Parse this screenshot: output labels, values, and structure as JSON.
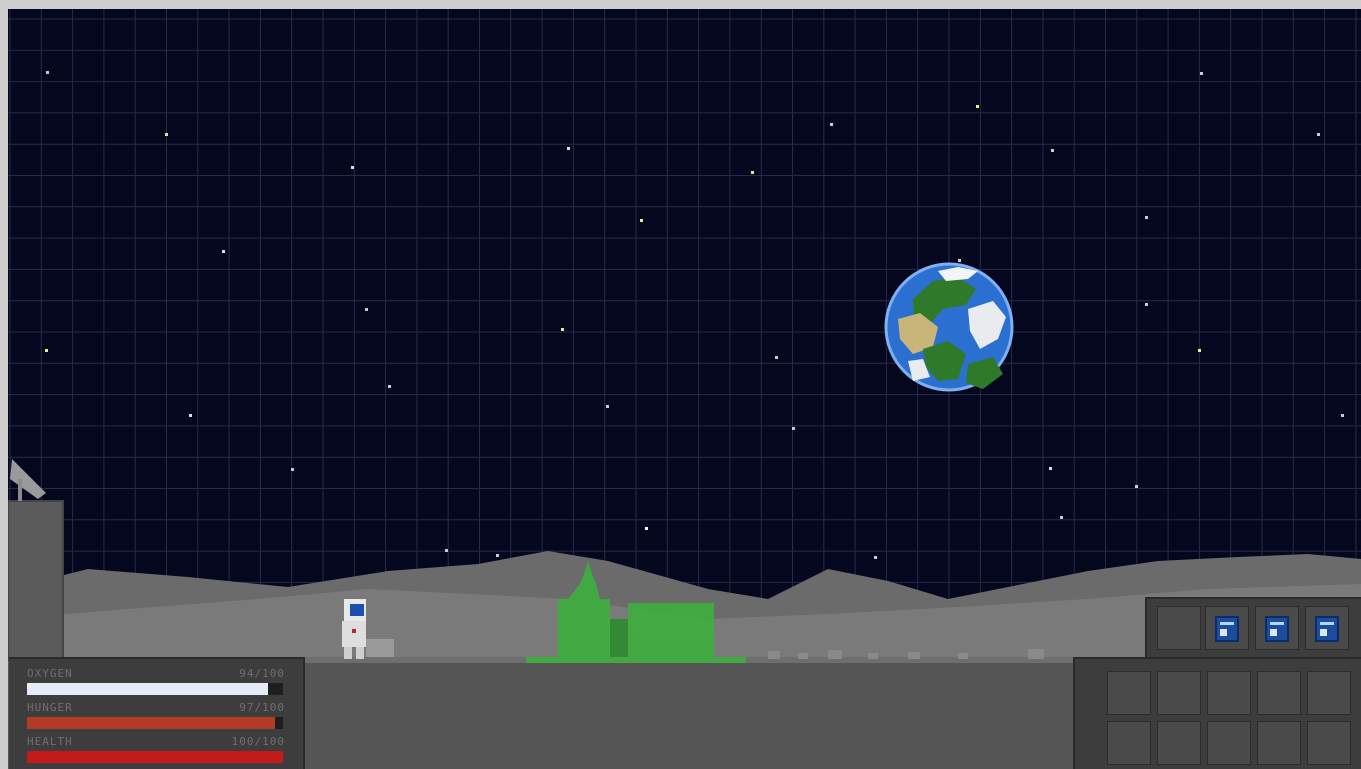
{
  "hud": {
    "stats": [
      {
        "label": "OXYGEN",
        "value_text": "94/100",
        "fraction": 0.94,
        "color": "#e6ebf5"
      },
      {
        "label": "HUNGER",
        "value_text": "97/100",
        "fraction": 0.97,
        "color": "#b23a26"
      },
      {
        "label": "HEALTH",
        "value_text": "100/100",
        "fraction": 1.0,
        "color": "#c41a1a"
      }
    ]
  },
  "hotbar": {
    "slots": [
      {
        "item": ""
      },
      {
        "item": "solar-panel-icon"
      },
      {
        "item": "solar-panel-icon"
      },
      {
        "item": "solar-panel-icon"
      }
    ]
  },
  "inventory": {
    "rows": 2,
    "cols": 5
  },
  "colors": {
    "sky": "#04071d",
    "grid": "#2a2f52",
    "ground": "#5c5c5c",
    "structure_green": "#3fae3f"
  }
}
